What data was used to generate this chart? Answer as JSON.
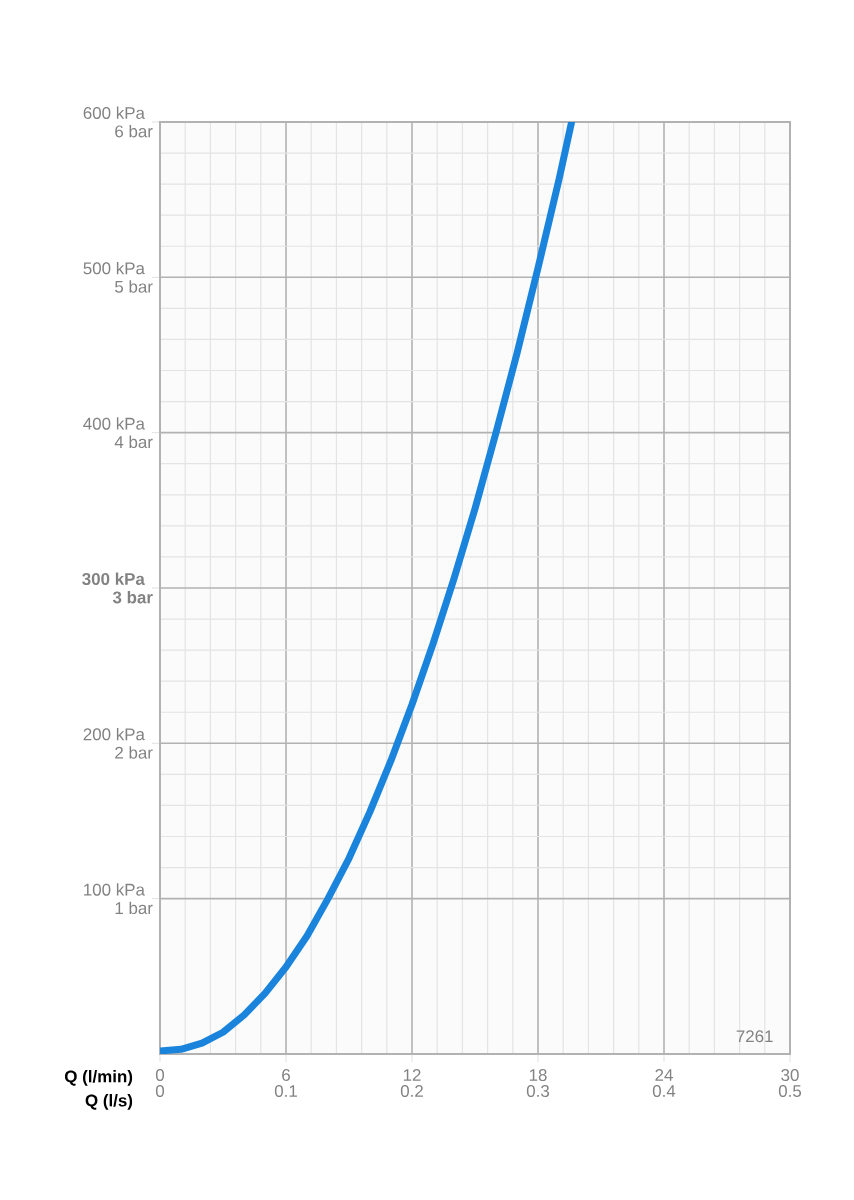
{
  "chart_data": {
    "type": "line",
    "xlabel": "Q (l/min)",
    "x2label": "Q (l/s)",
    "x": [
      0,
      1,
      2,
      3,
      4,
      5,
      6,
      7,
      8,
      9,
      10,
      11,
      12,
      13,
      14,
      15,
      16,
      17,
      18,
      19,
      19.6
    ],
    "series": [
      {
        "color": "#1a84dc",
        "line_style": "solid",
        "values": [
          2,
          3,
          7,
          14,
          25,
          39,
          56,
          76,
          100,
          126,
          156,
          189,
          225,
          264,
          306,
          351,
          400,
          451,
          506,
          563,
          600
        ]
      }
    ],
    "xlim": [
      0,
      30
    ],
    "xticks": [
      0,
      6,
      12,
      18,
      24,
      30
    ],
    "x2lim": [
      0,
      0.5
    ],
    "x2ticks": [
      {
        "value": 0,
        "label": "0"
      },
      0.1,
      0.2,
      0.3,
      0.4,
      0.5
    ],
    "ylim": [
      0,
      600
    ],
    "yticks": [
      {
        "value": 100,
        "label": "100 kPa"
      },
      {
        "value": 200,
        "label": "200 kPa"
      },
      {
        "value": 300,
        "label": "**300 kPa**"
      },
      {
        "value": 400,
        "label": "400 kPa"
      },
      {
        "value": 500,
        "label": "500 kPa"
      },
      {
        "value": 600,
        "label": "600 kPa"
      }
    ],
    "y2lim": [
      0,
      6
    ],
    "y2ticks": [
      {
        "value": 1,
        "label": "1 bar"
      },
      {
        "value": 2,
        "label": "2 bar"
      },
      {
        "value": 3,
        "label": "**3 bar**"
      },
      {
        "value": 4,
        "label": "4 bar"
      },
      {
        "value": 5,
        "label": "5 bar"
      },
      {
        "value": 6,
        "label": "6 bar"
      }
    ],
    "grid": true,
    "annotations": [
      "7261"
    ]
  }
}
